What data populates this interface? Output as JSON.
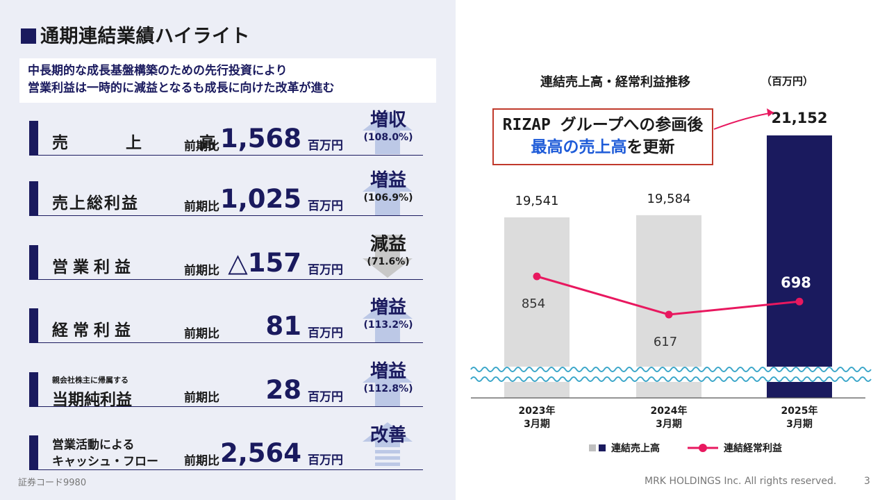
{
  "title": "通期連結業績ハイライト",
  "lead": {
    "line1": "中長期的な成長基盤構築のための先行投資により",
    "line2": "営業利益は一時的に減益となるも成長に向けた改革が進む"
  },
  "metrics": [
    {
      "label": "売　上　高",
      "prefix": "前期比",
      "value": "1,568",
      "unit": "百万円",
      "badge": "増収",
      "pct": "(108.0%)",
      "direction": "up"
    },
    {
      "label": "売上総利益",
      "prefix": "前期比",
      "value": "1,025",
      "unit": "百万円",
      "badge": "増益",
      "pct": "(106.9%)",
      "direction": "up"
    },
    {
      "label": "営業利益",
      "prefix": "前期比",
      "value": "△157",
      "unit": "百万円",
      "badge": "減益",
      "pct": "(71.6%)",
      "direction": "down"
    },
    {
      "label": "経常利益",
      "prefix": "前期比",
      "value": "81",
      "unit": "百万円",
      "badge": "増益",
      "pct": "(113.2%)",
      "direction": "up"
    },
    {
      "sublabel": "親会社株主に帰属する",
      "label": "当期純利益",
      "prefix": "前期比",
      "value": "28",
      "unit": "百万円",
      "badge": "増益",
      "pct": "(112.8%)",
      "direction": "up"
    },
    {
      "label_line1": "営業活動による",
      "label_line2": "キャッシュ・フロー",
      "prefix": "前期比",
      "value": "2,564",
      "unit": "百万円",
      "badge": "改善",
      "pct": "",
      "direction": "up"
    }
  ],
  "chart_title": "連結売上高・経常利益推移",
  "chart_unit": "（百万円）",
  "callout": {
    "line1": "RIZAP グループへの参画後",
    "line2_highlight": "最高の売上高",
    "line2_rest": "を更新"
  },
  "chart_data": {
    "type": "bar",
    "categories": [
      "2023年\n3月期",
      "2024年\n3月期",
      "2025年\n3月期"
    ],
    "series": [
      {
        "name": "連結売上高",
        "type": "bar",
        "values": [
          19541,
          19584,
          21152
        ],
        "labels": [
          "19,541",
          "19,584",
          "21,152"
        ],
        "colors": [
          "#dcdcdc",
          "#dcdcdc",
          "#1a1a5e"
        ]
      },
      {
        "name": "連結経常利益",
        "type": "line",
        "values": [
          854,
          617,
          698
        ],
        "labels": [
          "854",
          "617",
          "698"
        ],
        "color": "#e8185f"
      }
    ],
    "axis_break": true,
    "legend_position": "bottom"
  },
  "footer": {
    "code": "証券コード9980",
    "copyright": "MRK HOLDINGS Inc. All rights reserved.",
    "page": "3"
  },
  "colors": {
    "navy": "#1a1a5e",
    "accent": "#e8185f",
    "panel": "#eceef6",
    "callout_border": "#c0392b"
  }
}
